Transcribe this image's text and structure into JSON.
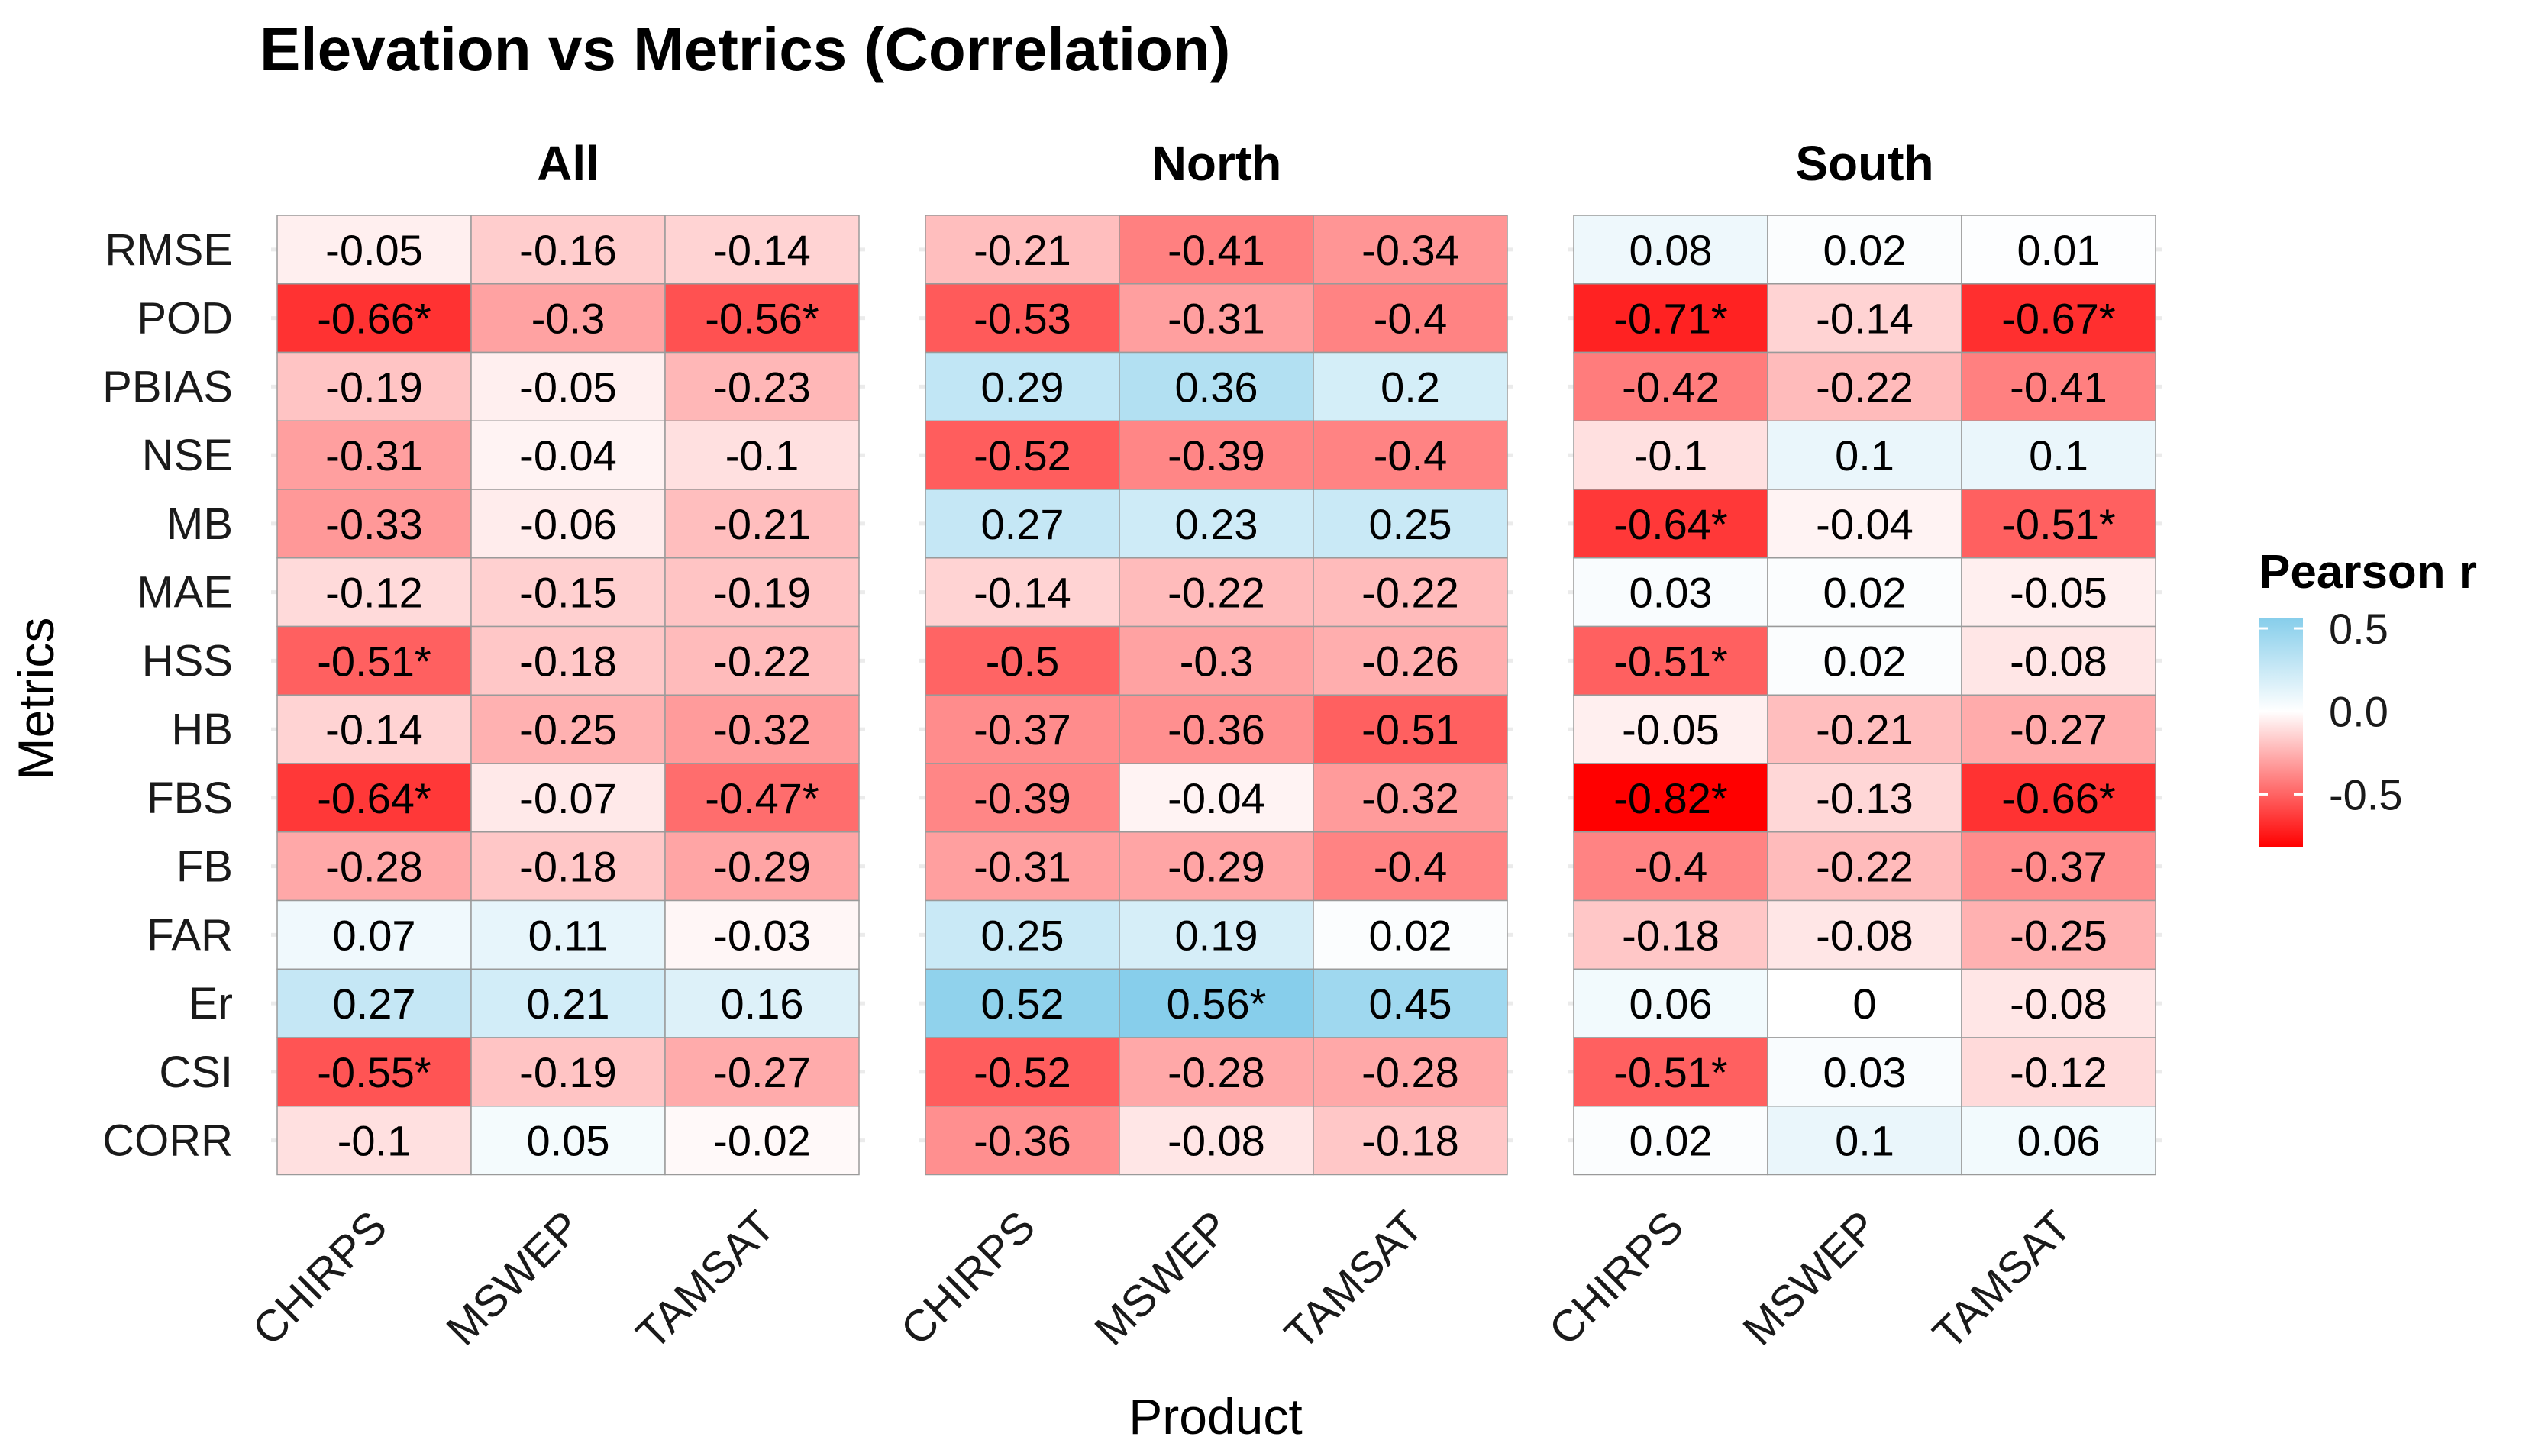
{
  "chart_data": {
    "type": "heatmap",
    "title": "Elevation vs Metrics (Correlation)",
    "xlabel": "Product",
    "ylabel": "Metrics",
    "legend": {
      "title": "Pearson r",
      "ticks": [
        "0.5",
        "0.0",
        "-0.5"
      ],
      "tick_values": [
        0.5,
        0.0,
        -0.5
      ],
      "range": [
        -0.82,
        0.56
      ],
      "position": "right"
    },
    "colors": {
      "low": "#ff0000",
      "mid": "#ffffff",
      "high": "#87ceeb"
    },
    "metrics": [
      "RMSE",
      "POD",
      "PBIAS",
      "NSE",
      "MB",
      "MAE",
      "HSS",
      "HB",
      "FBS",
      "FB",
      "FAR",
      "Er",
      "CSI",
      "CORR"
    ],
    "products": [
      "CHIRPS",
      "MSWEP",
      "TAMSAT"
    ],
    "facets": [
      {
        "name": "All",
        "values": [
          [
            -0.05,
            -0.16,
            -0.14
          ],
          [
            -0.66,
            -0.3,
            -0.56
          ],
          [
            -0.19,
            -0.05,
            -0.23
          ],
          [
            -0.31,
            -0.04,
            -0.1
          ],
          [
            -0.33,
            -0.06,
            -0.21
          ],
          [
            -0.12,
            -0.15,
            -0.19
          ],
          [
            -0.51,
            -0.18,
            -0.22
          ],
          [
            -0.14,
            -0.25,
            -0.32
          ],
          [
            -0.64,
            -0.07,
            -0.47
          ],
          [
            -0.28,
            -0.18,
            -0.29
          ],
          [
            0.07,
            0.11,
            -0.03
          ],
          [
            0.27,
            0.21,
            0.16
          ],
          [
            -0.55,
            -0.19,
            -0.27
          ],
          [
            -0.1,
            0.05,
            -0.02
          ]
        ],
        "labels": [
          [
            "-0.05",
            "-0.16",
            "-0.14"
          ],
          [
            "-0.66*",
            "-0.3",
            "-0.56*"
          ],
          [
            "-0.19",
            "-0.05",
            "-0.23"
          ],
          [
            "-0.31",
            "-0.04",
            "-0.1"
          ],
          [
            "-0.33",
            "-0.06",
            "-0.21"
          ],
          [
            "-0.12",
            "-0.15",
            "-0.19"
          ],
          [
            "-0.51*",
            "-0.18",
            "-0.22"
          ],
          [
            "-0.14",
            "-0.25",
            "-0.32"
          ],
          [
            "-0.64*",
            "-0.07",
            "-0.47*"
          ],
          [
            "-0.28",
            "-0.18",
            "-0.29"
          ],
          [
            "0.07",
            "0.11",
            "-0.03"
          ],
          [
            "0.27",
            "0.21",
            "0.16"
          ],
          [
            "-0.55*",
            "-0.19",
            "-0.27"
          ],
          [
            "-0.1",
            "0.05",
            "-0.02"
          ]
        ]
      },
      {
        "name": "North",
        "values": [
          [
            -0.21,
            -0.41,
            -0.34
          ],
          [
            -0.53,
            -0.31,
            -0.4
          ],
          [
            0.29,
            0.36,
            0.2
          ],
          [
            -0.52,
            -0.39,
            -0.4
          ],
          [
            0.27,
            0.23,
            0.25
          ],
          [
            -0.14,
            -0.22,
            -0.22
          ],
          [
            -0.5,
            -0.3,
            -0.26
          ],
          [
            -0.37,
            -0.36,
            -0.51
          ],
          [
            -0.39,
            -0.04,
            -0.32
          ],
          [
            -0.31,
            -0.29,
            -0.4
          ],
          [
            0.25,
            0.19,
            0.02
          ],
          [
            0.52,
            0.56,
            0.45
          ],
          [
            -0.52,
            -0.28,
            -0.28
          ],
          [
            -0.36,
            -0.08,
            -0.18
          ]
        ],
        "labels": [
          [
            "-0.21",
            "-0.41",
            "-0.34"
          ],
          [
            "-0.53",
            "-0.31",
            "-0.4"
          ],
          [
            "0.29",
            "0.36",
            "0.2"
          ],
          [
            "-0.52",
            "-0.39",
            "-0.4"
          ],
          [
            "0.27",
            "0.23",
            "0.25"
          ],
          [
            "-0.14",
            "-0.22",
            "-0.22"
          ],
          [
            "-0.5",
            "-0.3",
            "-0.26"
          ],
          [
            "-0.37",
            "-0.36",
            "-0.51"
          ],
          [
            "-0.39",
            "-0.04",
            "-0.32"
          ],
          [
            "-0.31",
            "-0.29",
            "-0.4"
          ],
          [
            "0.25",
            "0.19",
            "0.02"
          ],
          [
            "0.52",
            "0.56*",
            "0.45"
          ],
          [
            "-0.52",
            "-0.28",
            "-0.28"
          ],
          [
            "-0.36",
            "-0.08",
            "-0.18"
          ]
        ]
      },
      {
        "name": "South",
        "values": [
          [
            0.08,
            0.02,
            0.01
          ],
          [
            -0.71,
            -0.14,
            -0.67
          ],
          [
            -0.42,
            -0.22,
            -0.41
          ],
          [
            -0.1,
            0.1,
            0.1
          ],
          [
            -0.64,
            -0.04,
            -0.51
          ],
          [
            0.03,
            0.02,
            -0.05
          ],
          [
            -0.51,
            0.02,
            -0.08
          ],
          [
            -0.05,
            -0.21,
            -0.27
          ],
          [
            -0.82,
            -0.13,
            -0.66
          ],
          [
            -0.4,
            -0.22,
            -0.37
          ],
          [
            -0.18,
            -0.08,
            -0.25
          ],
          [
            0.06,
            0,
            -0.08
          ],
          [
            -0.51,
            0.03,
            -0.12
          ],
          [
            0.02,
            0.1,
            0.06
          ]
        ],
        "labels": [
          [
            "0.08",
            "0.02",
            "0.01"
          ],
          [
            "-0.71*",
            "-0.14",
            "-0.67*"
          ],
          [
            "-0.42",
            "-0.22",
            "-0.41"
          ],
          [
            "-0.1",
            "0.1",
            "0.1"
          ],
          [
            "-0.64*",
            "-0.04",
            "-0.51*"
          ],
          [
            "0.03",
            "0.02",
            "-0.05"
          ],
          [
            "-0.51*",
            "0.02",
            "-0.08"
          ],
          [
            "-0.05",
            "-0.21",
            "-0.27"
          ],
          [
            "-0.82*",
            "-0.13",
            "-0.66*"
          ],
          [
            "-0.4",
            "-0.22",
            "-0.37"
          ],
          [
            "-0.18",
            "-0.08",
            "-0.25"
          ],
          [
            "0.06",
            "0",
            "-0.08"
          ],
          [
            "-0.51*",
            "0.03",
            "-0.12"
          ],
          [
            "0.02",
            "0.1",
            "0.06"
          ]
        ]
      }
    ]
  }
}
